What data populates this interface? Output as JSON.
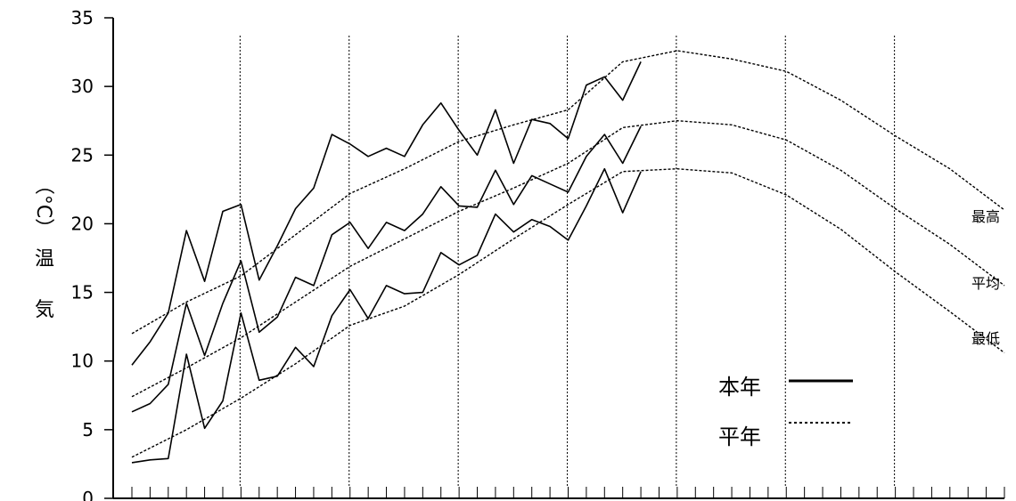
{
  "chart_data": {
    "type": "line",
    "ylabel_chars": [
      "気",
      "温",
      "（°C）"
    ],
    "ylim": [
      0,
      35
    ],
    "y_ticks": [
      "0",
      "5",
      "10",
      "15",
      "20",
      "25",
      "30",
      "35"
    ],
    "x_minor_tick_count": 48,
    "x_major_divisions": [
      6,
      12,
      18,
      24,
      30,
      36,
      42
    ],
    "grid": "vertical-dotted",
    "series_labels": [
      "最高",
      "平均",
      "最低"
    ],
    "legend": {
      "position": "bottom-right",
      "items": [
        {
          "label": "本年",
          "style": "solid"
        },
        {
          "label": "平年",
          "style": "dotted"
        }
      ]
    },
    "series": [
      {
        "group": "本年",
        "kind": "最高",
        "x": [
          0,
          1,
          2,
          3,
          4,
          5,
          6,
          7,
          8,
          9,
          10,
          11,
          12,
          13,
          14,
          15,
          16,
          17,
          18,
          19,
          20,
          21,
          22,
          23,
          24,
          25,
          26,
          27,
          28
        ],
        "values": [
          9.7,
          11.4,
          13.5,
          19.5,
          15.8,
          20.9,
          21.4,
          15.9,
          18.4,
          21.1,
          22.6,
          26.5,
          25.8,
          24.9,
          25.5,
          24.9,
          27.2,
          28.8,
          26.8,
          25.0,
          28.3,
          24.4,
          27.6,
          27.3,
          26.2,
          30.1,
          30.7,
          29.0,
          31.8
        ]
      },
      {
        "group": "本年",
        "kind": "平均",
        "x": [
          0,
          1,
          2,
          3,
          4,
          5,
          6,
          7,
          8,
          9,
          10,
          11,
          12,
          13,
          14,
          15,
          16,
          17,
          18,
          19,
          20,
          21,
          22,
          23,
          24,
          25,
          26,
          27,
          28
        ],
        "values": [
          6.3,
          6.9,
          8.3,
          14.2,
          10.4,
          14.2,
          17.3,
          12.1,
          13.2,
          16.1,
          15.5,
          19.2,
          20.1,
          18.2,
          20.1,
          19.5,
          20.7,
          22.7,
          21.3,
          21.2,
          23.9,
          21.4,
          23.5,
          22.9,
          22.3,
          24.9,
          26.5,
          24.4,
          27.1
        ]
      },
      {
        "group": "本年",
        "kind": "最低",
        "x": [
          0,
          1,
          2,
          3,
          4,
          5,
          6,
          7,
          8,
          9,
          10,
          11,
          12,
          13,
          14,
          15,
          16,
          17,
          18,
          19,
          20,
          21,
          22,
          23,
          24,
          25,
          26,
          27,
          28
        ],
        "values": [
          2.6,
          2.8,
          2.9,
          10.5,
          5.1,
          7.1,
          13.5,
          8.6,
          8.9,
          11.0,
          9.6,
          13.3,
          15.2,
          13.1,
          15.5,
          14.9,
          15.0,
          17.9,
          17.0,
          17.7,
          20.7,
          19.4,
          20.3,
          19.8,
          18.8,
          21.3,
          24.0,
          20.8,
          23.8
        ]
      },
      {
        "group": "平年",
        "kind": "最高",
        "x": [
          0,
          3,
          6,
          9,
          12,
          15,
          18,
          21,
          24,
          27,
          30,
          33,
          36,
          39,
          42,
          45,
          48
        ],
        "values": [
          12.0,
          14.3,
          16.2,
          19.2,
          22.2,
          24.0,
          26.0,
          27.2,
          28.3,
          31.8,
          32.6,
          32.0,
          31.1,
          29.0,
          26.4,
          24.0,
          21.0
        ]
      },
      {
        "group": "平年",
        "kind": "平均",
        "x": [
          0,
          3,
          6,
          9,
          12,
          15,
          18,
          21,
          24,
          27,
          30,
          33,
          36,
          39,
          42,
          45,
          48
        ],
        "values": [
          7.4,
          9.5,
          11.7,
          14.3,
          16.9,
          18.9,
          20.9,
          22.6,
          24.4,
          27.0,
          27.5,
          27.2,
          26.1,
          23.9,
          21.1,
          18.5,
          15.5
        ]
      },
      {
        "group": "平年",
        "kind": "最低",
        "x": [
          0,
          3,
          6,
          9,
          12,
          15,
          18,
          21,
          24,
          27,
          30,
          33,
          36,
          39,
          42,
          45,
          48
        ],
        "values": [
          3.0,
          5.0,
          7.3,
          9.8,
          12.6,
          14.0,
          16.3,
          18.9,
          21.4,
          23.8,
          24.0,
          23.7,
          22.1,
          19.6,
          16.5,
          13.6,
          10.6
        ]
      }
    ]
  }
}
